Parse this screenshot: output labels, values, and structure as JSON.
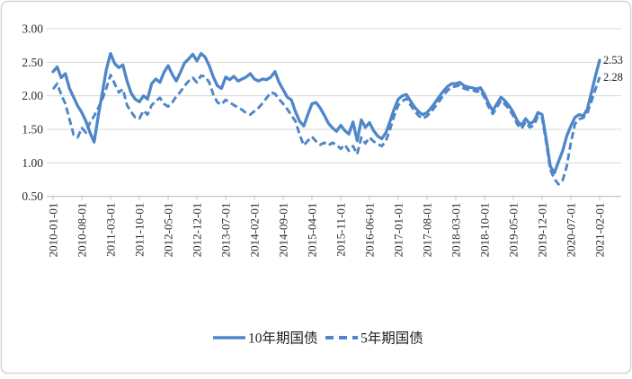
{
  "chart": {
    "border_color": "#d5d5d5",
    "background": "#ffffff"
  },
  "chart_data": {
    "type": "line",
    "title": "",
    "xlabel": "",
    "ylabel": "",
    "ylim": [
      0.5,
      3.0
    ],
    "grid": "horizontal",
    "grid_color": "#d9d9d9",
    "axis_color": "#bfbfbf",
    "label_color": "#2b2b2b",
    "legend_position": "bottom",
    "y_tick_labels": [
      "3.00",
      "2.50",
      "2.00",
      "1.50",
      "1.00",
      "0.50"
    ],
    "x_tick_labels": [
      "2010-01-01",
      "2010-08-01",
      "2011-03-01",
      "2011-10-01",
      "2012-05-01",
      "2012-12-01",
      "2013-07-01",
      "2014-02-01",
      "2014-09-01",
      "2015-04-01",
      "2015-11-01",
      "2016-06-01",
      "2017-01-01",
      "2017-08-01",
      "2018-03-01",
      "2018-10-01",
      "2019-05-01",
      "2019-12-01",
      "2020-07-01",
      "2021-02-01"
    ],
    "x_tick_interval_months": 7,
    "series": [
      {
        "name": "10年期国债",
        "style": "solid",
        "color": "#4e86c8",
        "end_label": "2.53",
        "values": [
          2.36,
          2.43,
          2.27,
          2.33,
          2.11,
          1.98,
          1.85,
          1.75,
          1.62,
          1.45,
          1.31,
          1.7,
          2.05,
          2.4,
          2.63,
          2.48,
          2.42,
          2.46,
          2.22,
          2.04,
          1.95,
          1.91,
          2.0,
          1.95,
          2.18,
          2.25,
          2.2,
          2.35,
          2.45,
          2.32,
          2.22,
          2.35,
          2.49,
          2.55,
          2.62,
          2.52,
          2.63,
          2.58,
          2.45,
          2.28,
          2.15,
          2.11,
          2.28,
          2.24,
          2.29,
          2.22,
          2.25,
          2.28,
          2.33,
          2.25,
          2.22,
          2.25,
          2.24,
          2.28,
          2.36,
          2.2,
          2.09,
          1.98,
          1.94,
          1.76,
          1.62,
          1.55,
          1.72,
          1.88,
          1.9,
          1.82,
          1.71,
          1.59,
          1.52,
          1.47,
          1.56,
          1.48,
          1.43,
          1.61,
          1.33,
          1.64,
          1.53,
          1.6,
          1.48,
          1.4,
          1.36,
          1.45,
          1.62,
          1.8,
          1.95,
          2.0,
          2.02,
          1.92,
          1.83,
          1.76,
          1.72,
          1.75,
          1.82,
          1.9,
          1.99,
          2.07,
          2.14,
          2.18,
          2.18,
          2.2,
          2.15,
          2.13,
          2.12,
          2.1,
          2.12,
          2.02,
          1.88,
          1.78,
          1.88,
          1.98,
          1.92,
          1.85,
          1.75,
          1.62,
          1.56,
          1.66,
          1.58,
          1.62,
          1.75,
          1.72,
          1.35,
          0.95,
          0.85,
          1.02,
          1.18,
          1.4,
          1.55,
          1.68,
          1.72,
          1.7,
          1.8,
          2.05,
          2.3,
          2.53
        ]
      },
      {
        "name": "5年期国债",
        "style": "dashed",
        "color": "#4e86c8",
        "end_label": "2.28",
        "values": [
          2.1,
          2.18,
          2.02,
          1.88,
          1.65,
          1.42,
          1.38,
          1.52,
          1.45,
          1.6,
          1.7,
          1.82,
          1.95,
          2.12,
          2.31,
          2.18,
          2.05,
          2.1,
          1.86,
          1.76,
          1.68,
          1.66,
          1.78,
          1.72,
          1.86,
          1.92,
          1.97,
          1.88,
          1.84,
          1.9,
          1.99,
          2.06,
          2.15,
          2.22,
          2.27,
          2.2,
          2.3,
          2.29,
          2.2,
          2.02,
          1.9,
          1.87,
          1.94,
          1.9,
          1.86,
          1.83,
          1.79,
          1.74,
          1.72,
          1.77,
          1.82,
          1.89,
          1.97,
          2.05,
          2.03,
          1.95,
          1.88,
          1.8,
          1.71,
          1.62,
          1.42,
          1.26,
          1.33,
          1.39,
          1.32,
          1.27,
          1.3,
          1.26,
          1.3,
          1.27,
          1.21,
          1.27,
          1.18,
          1.25,
          1.13,
          1.38,
          1.29,
          1.38,
          1.32,
          1.28,
          1.25,
          1.33,
          1.5,
          1.7,
          1.86,
          1.92,
          1.96,
          1.86,
          1.77,
          1.7,
          1.66,
          1.7,
          1.76,
          1.84,
          1.92,
          2.01,
          2.08,
          2.13,
          2.14,
          2.16,
          2.11,
          2.09,
          2.09,
          2.06,
          2.08,
          1.97,
          1.83,
          1.73,
          1.83,
          1.93,
          1.87,
          1.8,
          1.7,
          1.57,
          1.51,
          1.61,
          1.53,
          1.56,
          1.7,
          1.67,
          1.3,
          0.9,
          0.76,
          0.68,
          0.74,
          0.95,
          1.3,
          1.58,
          1.65,
          1.67,
          1.74,
          1.92,
          2.1,
          2.28
        ]
      }
    ]
  }
}
